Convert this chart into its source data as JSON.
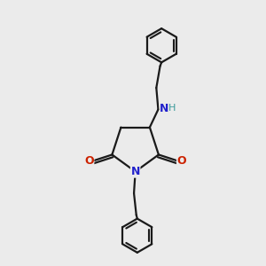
{
  "background_color": "#ebebeb",
  "bond_color": "#1a1a1a",
  "N_color": "#2222cc",
  "O_color": "#cc2200",
  "H_color": "#3a9a9a",
  "line_width": 1.6,
  "figsize": [
    3.0,
    3.0
  ],
  "dpi": 100,
  "xlim": [
    -1.5,
    1.5
  ],
  "ylim": [
    -2.8,
    2.8
  ]
}
